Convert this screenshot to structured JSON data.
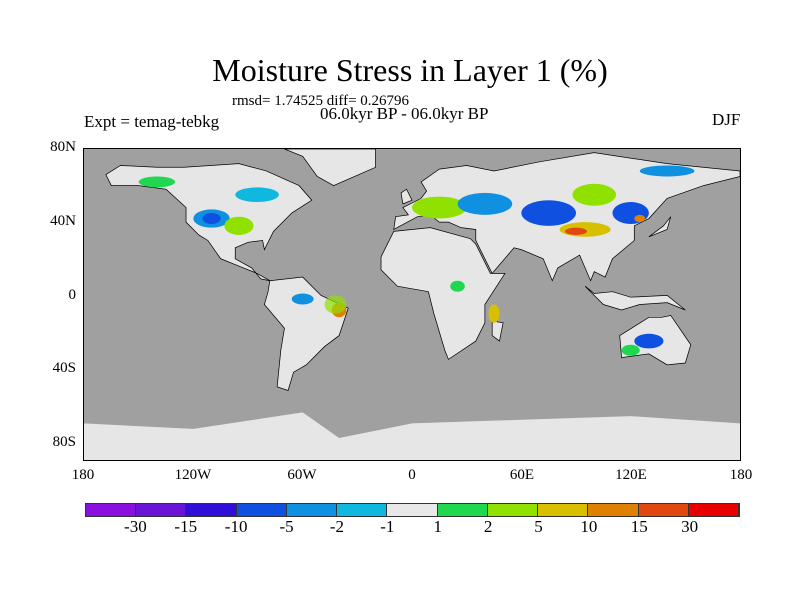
{
  "title": "Moisture Stress in Layer 1 (%)",
  "rmsd_line": "rmsd= 1.74525 diff= 0.26796",
  "period": "06.0kyr BP - 06.0kyr BP",
  "experiment": "Expt = temag-tebkg",
  "season": "DJF",
  "lat_ticks": [
    "80N",
    "40N",
    "0",
    "40S",
    "80S"
  ],
  "lon_ticks": [
    "180",
    "120W",
    "60W",
    "0",
    "60E",
    "120E",
    "180"
  ],
  "colors": {
    "ocean": "#a0a0a0",
    "land": "#e6e6e6"
  },
  "colorbar": {
    "colors": [
      "#8a10e0",
      "#6a14d8",
      "#3010d8",
      "#1050e0",
      "#1090e0",
      "#10b8e0",
      "#e8e8e8",
      "#20d850",
      "#90e000",
      "#d8c000",
      "#e08000",
      "#e04810",
      "#e80000"
    ],
    "labels": [
      "-30",
      "-15",
      "-10",
      "-5",
      "-2",
      "-1",
      "1",
      "2",
      "5",
      "10",
      "15",
      "30"
    ]
  }
}
